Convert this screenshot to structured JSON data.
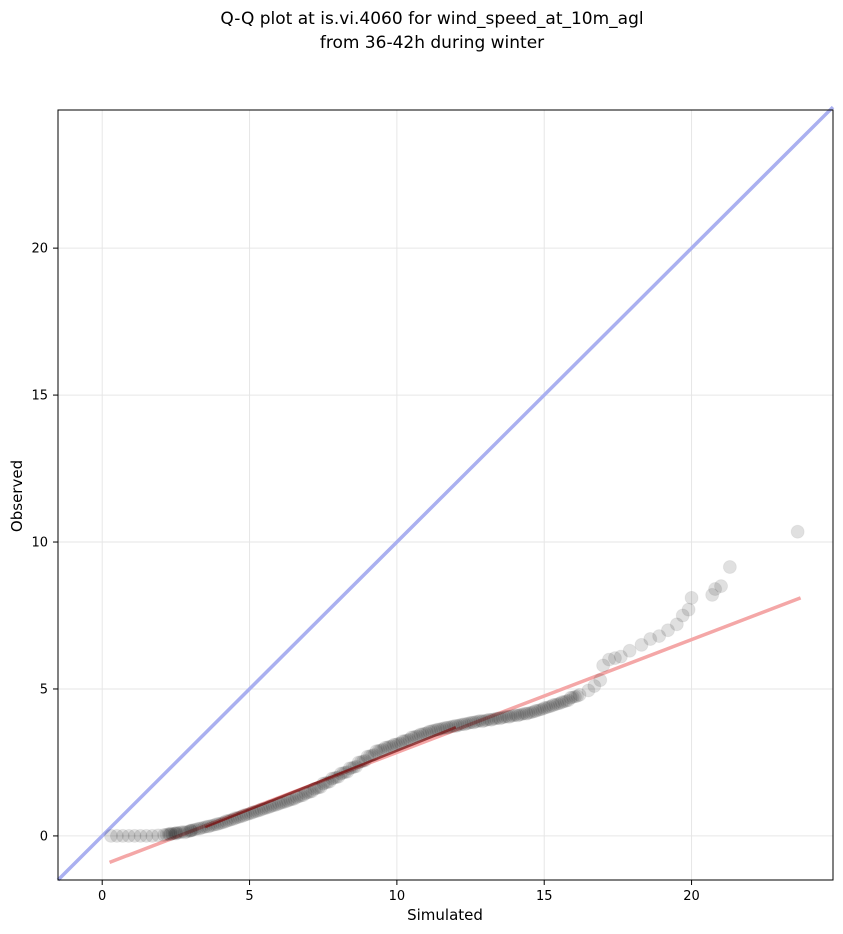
{
  "chart_data": {
    "type": "scatter",
    "title": [
      "Q-Q plot at is.vi.4060 for wind_speed_at_10m_agl",
      "from 36-42h during winter"
    ],
    "xlabel": "Simulated",
    "ylabel": "Observed",
    "xlim": [
      -1.5,
      24.8
    ],
    "ylim": [
      -1.5,
      24.7
    ],
    "xticks": [
      0,
      5,
      10,
      15,
      20
    ],
    "yticks": [
      0,
      5,
      10,
      15,
      20
    ],
    "grid": true,
    "identity_line": {
      "color": "#aab0f0",
      "from": [
        -1.5,
        -1.5
      ],
      "to": [
        24.8,
        24.8
      ]
    },
    "fit_line": {
      "color": "#f4a7a7",
      "from": [
        0.25,
        -0.9
      ],
      "to": [
        23.7,
        8.1
      ]
    },
    "trend_line": {
      "color": "#7a1010",
      "from": [
        3.5,
        0.3
      ],
      "to": [
        12.0,
        3.7
      ]
    },
    "point_color": "#000000",
    "points_x": [
      0.3,
      0.5,
      0.7,
      0.9,
      1.1,
      1.3,
      1.5,
      1.7,
      1.9,
      2.1,
      2.3,
      2.5,
      2.8,
      3.0,
      3.3,
      3.6,
      3.9,
      4.2,
      4.5,
      4.8,
      5.1,
      5.4,
      5.7,
      6.0,
      6.3,
      6.6,
      6.9,
      7.2,
      7.5,
      7.8,
      8.1,
      8.4,
      8.7,
      9.0,
      9.3,
      9.6,
      9.9,
      10.2,
      10.5,
      10.8,
      11.1,
      11.4,
      11.7,
      12.0,
      12.3,
      12.6,
      12.9,
      13.2,
      13.5,
      13.8,
      14.1,
      14.4,
      14.7,
      15.0,
      15.3,
      15.6,
      15.9,
      16.2,
      16.5,
      16.7,
      16.9,
      17.0,
      17.2,
      17.4,
      17.6,
      17.9,
      18.3,
      18.6,
      18.9,
      19.2,
      19.5,
      19.7,
      19.9,
      20.0,
      20.7,
      20.8,
      21.0,
      21.3,
      23.6
    ],
    "points_y": [
      0.0,
      0.0,
      0.0,
      0.0,
      0.0,
      0.0,
      0.0,
      0.0,
      0.02,
      0.03,
      0.05,
      0.08,
      0.12,
      0.18,
      0.25,
      0.32,
      0.4,
      0.5,
      0.6,
      0.7,
      0.8,
      0.9,
      1.0,
      1.1,
      1.2,
      1.32,
      1.45,
      1.6,
      1.78,
      1.95,
      2.12,
      2.3,
      2.5,
      2.7,
      2.88,
      3.0,
      3.1,
      3.22,
      3.35,
      3.45,
      3.55,
      3.62,
      3.68,
      3.74,
      3.8,
      3.86,
      3.9,
      3.95,
      4.0,
      4.05,
      4.1,
      4.16,
      4.25,
      4.35,
      4.45,
      4.55,
      4.7,
      4.8,
      4.95,
      5.1,
      5.3,
      5.8,
      6.0,
      6.05,
      6.1,
      6.3,
      6.5,
      6.7,
      6.8,
      7.0,
      7.2,
      7.5,
      7.7,
      8.1,
      8.2,
      8.4,
      8.5,
      9.15,
      10.35
    ]
  }
}
